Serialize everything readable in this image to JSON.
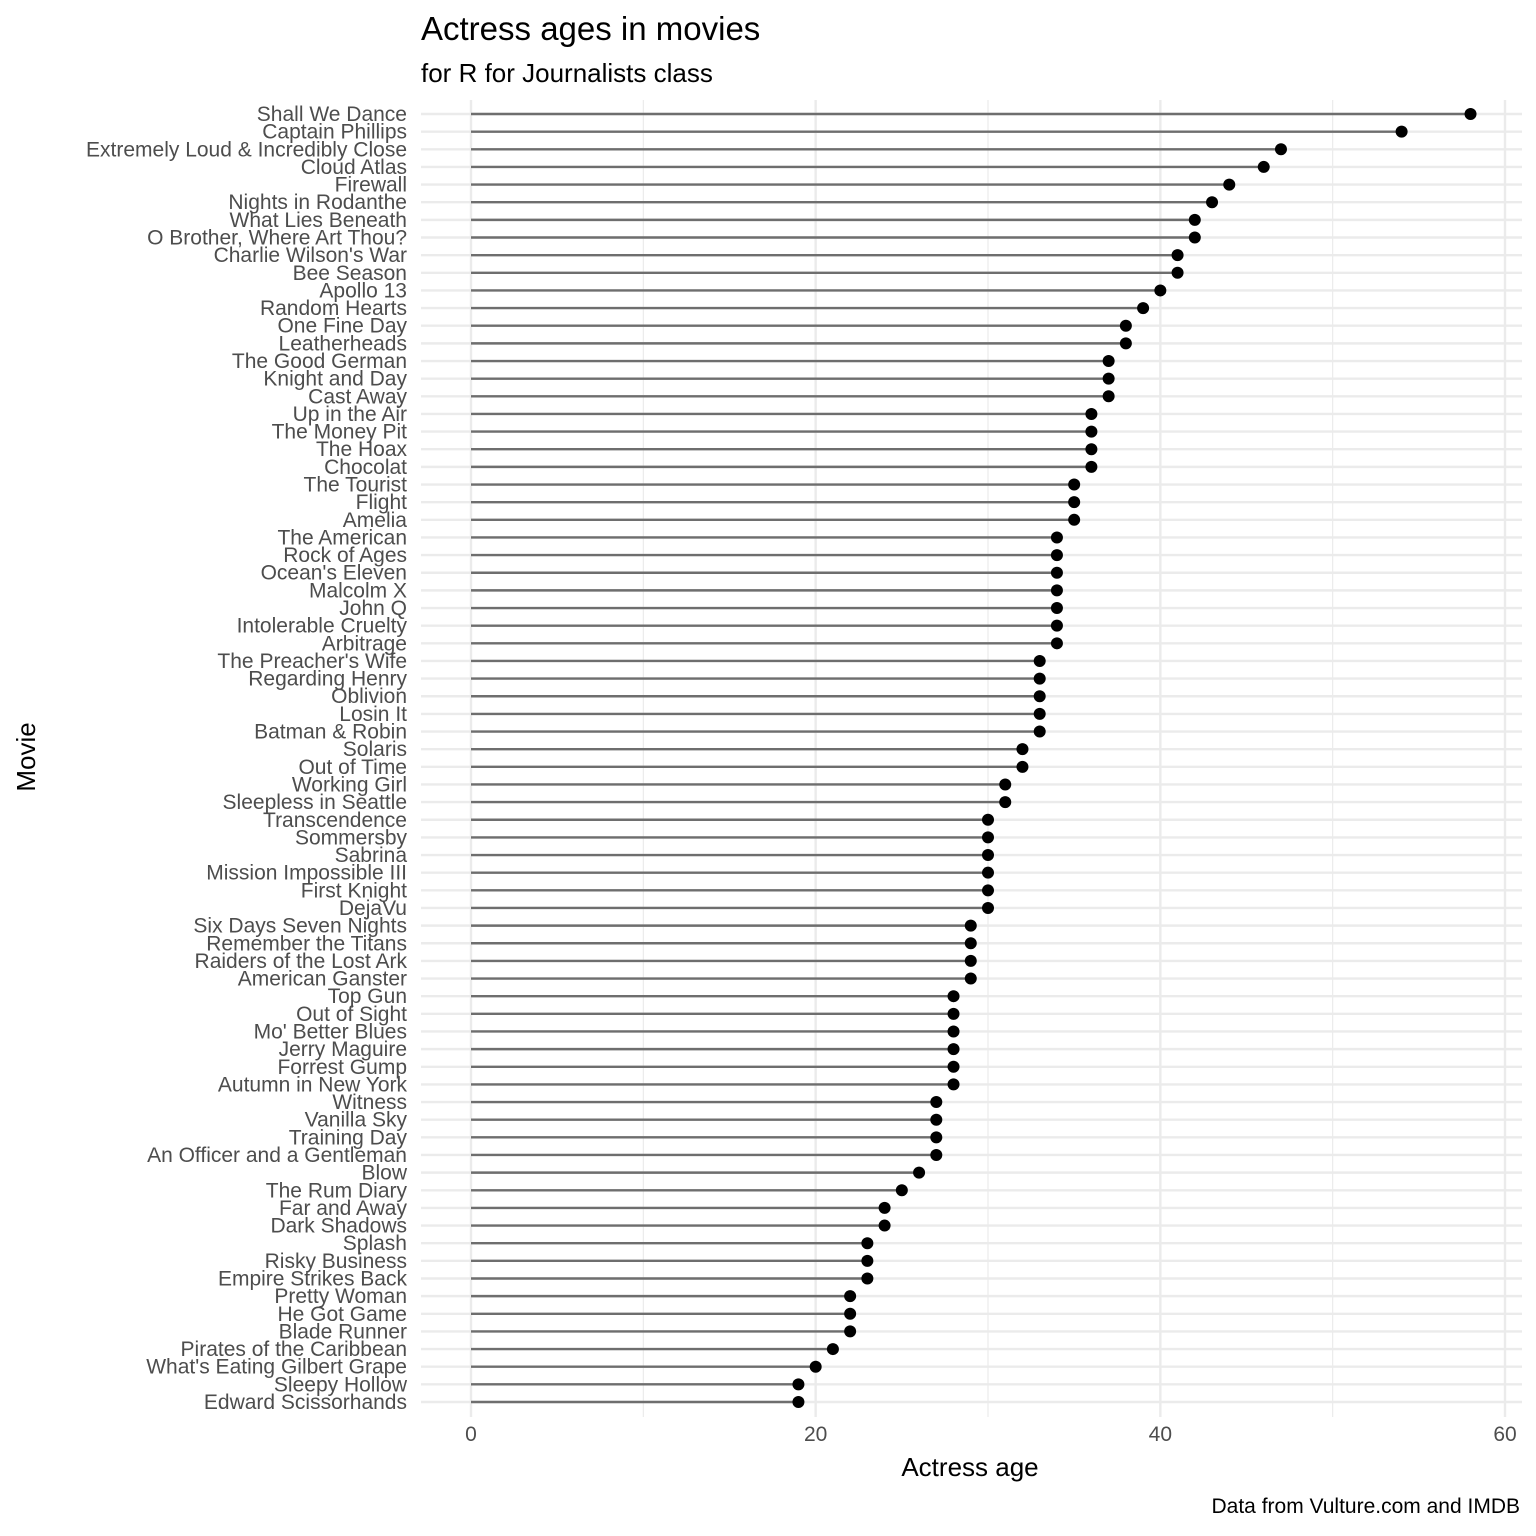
{
  "chart_data": {
    "type": "lollipop",
    "orientation": "horizontal",
    "title": "Actress ages in movies",
    "subtitle": "for R for Journalists class",
    "xlabel": "Actress age",
    "ylabel": "Movie",
    "caption": "Data from Vulture.com and IMDB",
    "xlim": [
      0,
      60
    ],
    "xticks": [
      0,
      20,
      40,
      60
    ],
    "grid": true,
    "categories": [
      "Shall We Dance",
      "Captain Phillips",
      "Extremely Loud & Incredibly Close",
      "Cloud Atlas",
      "Firewall",
      "Nights in Rodanthe",
      "What Lies Beneath",
      "O Brother, Where Art Thou?",
      "Charlie Wilson's War",
      "Bee Season",
      "Apollo 13",
      "Random Hearts",
      "One Fine Day",
      "Leatherheads",
      "The Good German",
      "Knight and Day",
      "Cast Away",
      "Up in the Air",
      "The Money Pit",
      "The Hoax",
      "Chocolat",
      "The Tourist",
      "Flight",
      "Amelia",
      "The American",
      "Rock of Ages",
      "Ocean's Eleven",
      "Malcolm X",
      "John Q",
      "Intolerable Cruelty",
      "Arbitrage",
      "The Preacher's Wife",
      "Regarding Henry",
      "Oblivion",
      "Losin It",
      "Batman & Robin",
      "Solaris",
      "Out of Time",
      "Working Girl",
      "Sleepless in Seattle",
      "Transcendence",
      "Sommersby",
      "Sabrina",
      "Mission Impossible III",
      "First Knight",
      "DejaVu",
      "Six Days Seven Nights",
      "Remember the Titans",
      "Raiders of the Lost Ark",
      "American Ganster",
      "Top Gun",
      "Out of Sight",
      "Mo' Better Blues",
      "Jerry Maguire",
      "Forrest Gump",
      "Autumn in New York",
      "Witness",
      "Vanilla Sky",
      "Training Day",
      "An Officer and a Gentleman",
      "Blow",
      "The Rum Diary",
      "Far and Away",
      "Dark Shadows",
      "Splash",
      "Risky Business",
      "Empire Strikes Back",
      "Pretty Woman",
      "He Got Game",
      "Blade Runner",
      "Pirates of the Caribbean",
      "What's Eating Gilbert Grape",
      "Sleepy Hollow",
      "Edward Scissorhands"
    ],
    "values": [
      58,
      54,
      47,
      46,
      44,
      43,
      42,
      42,
      41,
      41,
      40,
      39,
      38,
      38,
      37,
      37,
      37,
      36,
      36,
      36,
      36,
      35,
      35,
      35,
      34,
      34,
      34,
      34,
      34,
      34,
      34,
      33,
      33,
      33,
      33,
      33,
      32,
      32,
      31,
      31,
      30,
      30,
      30,
      30,
      30,
      30,
      29,
      29,
      29,
      29,
      28,
      28,
      28,
      28,
      28,
      28,
      27,
      27,
      27,
      27,
      26,
      25,
      24,
      24,
      23,
      23,
      23,
      22,
      22,
      22,
      21,
      20,
      19,
      19
    ],
    "colors": {
      "stem": "#6e6e6e",
      "point": "#000000",
      "grid": "#ebebeb",
      "text": "#4d4d4d"
    }
  }
}
